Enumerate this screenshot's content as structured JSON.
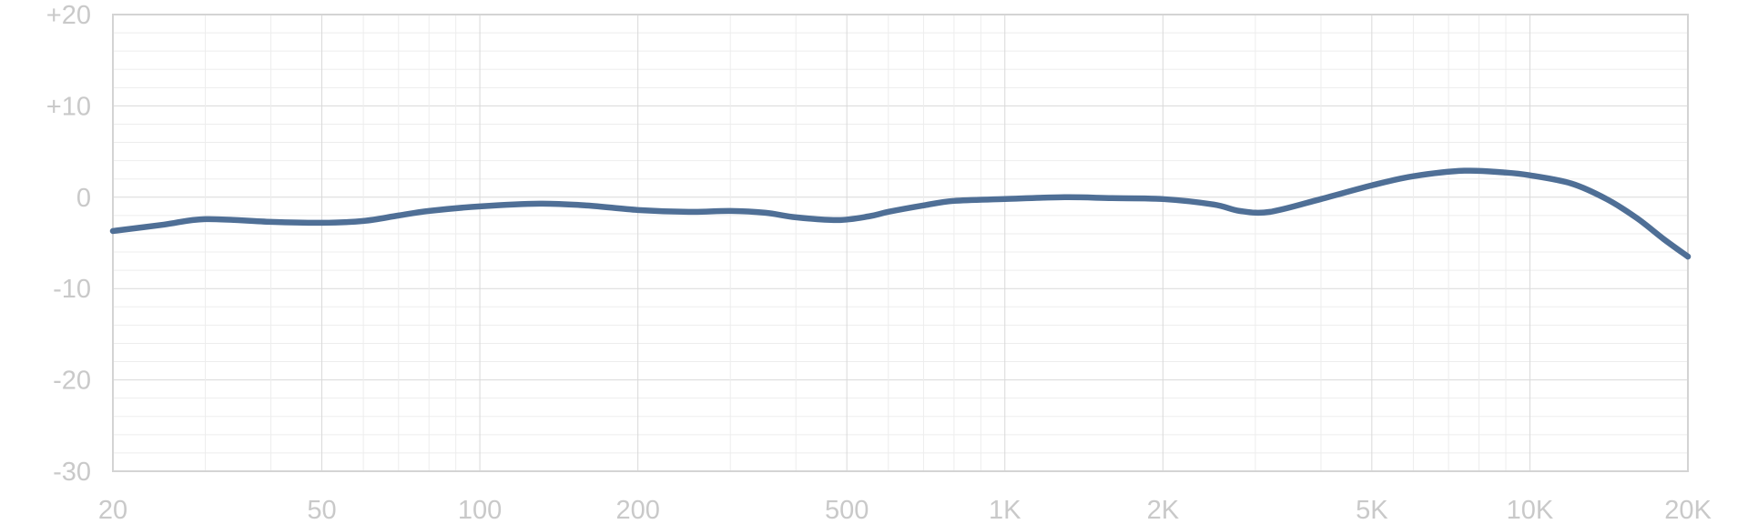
{
  "chart_data": {
    "type": "line",
    "title": "",
    "xlabel": "",
    "ylabel": "",
    "xscale": "log",
    "xlim": [
      20,
      20000
    ],
    "ylim": [
      -30,
      20
    ],
    "grid": true,
    "legend": "none",
    "x_ticks": [
      {
        "value": 20,
        "label": "20"
      },
      {
        "value": 50,
        "label": "50"
      },
      {
        "value": 100,
        "label": "100"
      },
      {
        "value": 200,
        "label": "200"
      },
      {
        "value": 500,
        "label": "500"
      },
      {
        "value": 1000,
        "label": "1K"
      },
      {
        "value": 2000,
        "label": "2K"
      },
      {
        "value": 5000,
        "label": "5K"
      },
      {
        "value": 10000,
        "label": "10K"
      },
      {
        "value": 20000,
        "label": "20K"
      }
    ],
    "y_ticks": [
      {
        "value": 20,
        "label": "+20"
      },
      {
        "value": 10,
        "label": "+10"
      },
      {
        "value": 0,
        "label": "0"
      },
      {
        "value": -10,
        "label": "-10"
      },
      {
        "value": -20,
        "label": "-20"
      },
      {
        "value": -30,
        "label": "-30"
      }
    ],
    "series": [
      {
        "color": "#4f6f96",
        "x": [
          20,
          25,
          30,
          40,
          50,
          60,
          70,
          80,
          100,
          130,
          160,
          200,
          250,
          300,
          350,
          400,
          480,
          550,
          600,
          700,
          800,
          1000,
          1300,
          1600,
          2000,
          2500,
          2800,
          3200,
          4000,
          5000,
          6000,
          7500,
          9000,
          10000,
          12000,
          14000,
          16000,
          18000,
          20000
        ],
        "y": [
          -3.7,
          -3.0,
          -2.4,
          -2.7,
          -2.8,
          -2.6,
          -2.0,
          -1.5,
          -1.0,
          -0.7,
          -0.9,
          -1.4,
          -1.6,
          -1.5,
          -1.7,
          -2.2,
          -2.5,
          -2.1,
          -1.6,
          -0.9,
          -0.4,
          -0.2,
          0.0,
          -0.1,
          -0.2,
          -0.8,
          -1.5,
          -1.6,
          -0.2,
          1.3,
          2.3,
          2.9,
          2.7,
          2.4,
          1.5,
          -0.2,
          -2.3,
          -4.6,
          -6.5
        ]
      }
    ]
  }
}
